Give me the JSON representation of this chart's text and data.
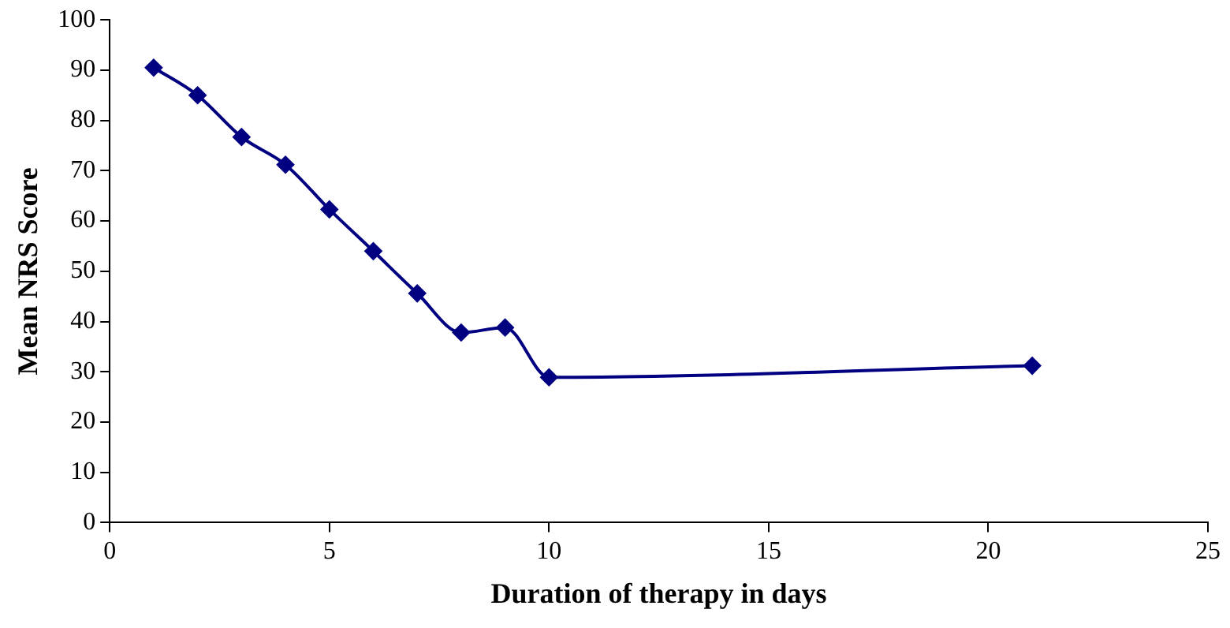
{
  "chart_data": {
    "type": "line",
    "xlabel": "Duration of therapy in days",
    "ylabel": "Mean NRS Score",
    "x": [
      1,
      2,
      3,
      4,
      5,
      6,
      7,
      8,
      9,
      10,
      21
    ],
    "series": [
      {
        "color": "#000080",
        "values": [
          90.5,
          85,
          76.7,
          71.2,
          62.3,
          54,
          45.6,
          37.8,
          38.8,
          28.9,
          31.2
        ]
      }
    ],
    "xlim": [
      0,
      25
    ],
    "xticks": [
      0,
      5,
      10,
      15,
      20,
      25
    ],
    "ylim": [
      0,
      100
    ],
    "yticks": [
      0,
      10,
      20,
      30,
      40,
      50,
      60,
      70,
      80,
      90,
      100
    ],
    "grid": false,
    "legend": false,
    "marker": "diamond",
    "line_style": "solid"
  }
}
